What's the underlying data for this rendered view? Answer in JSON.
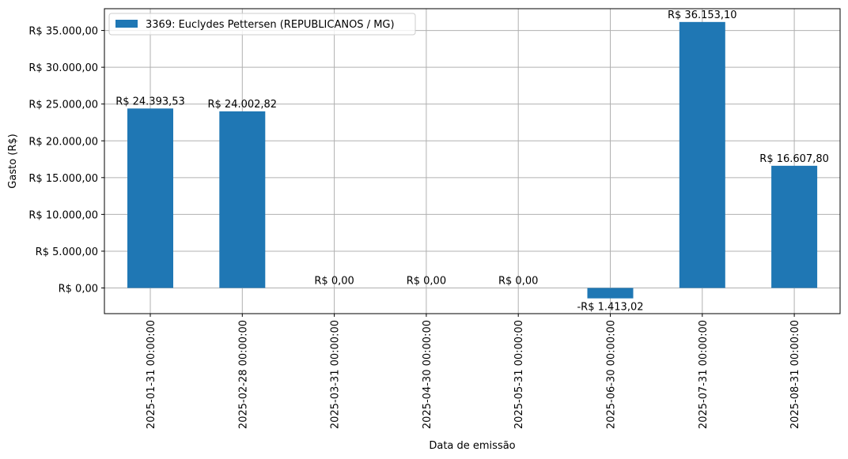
{
  "chart_data": {
    "type": "bar",
    "categories": [
      "2025-01-31 00:00:00",
      "2025-02-28 00:00:00",
      "2025-03-31 00:00:00",
      "2025-04-30 00:00:00",
      "2025-05-31 00:00:00",
      "2025-06-30 00:00:00",
      "2025-07-31 00:00:00",
      "2025-08-31 00:00:00"
    ],
    "series": [
      {
        "name": "3369: Euclydes Pettersen (REPUBLICANOS / MG)",
        "values": [
          24393.53,
          24002.82,
          0,
          0,
          0,
          -1413.02,
          36153.1,
          16607.8
        ],
        "color": "#1f77b4"
      }
    ],
    "data_labels": [
      "R$ 24.393,53",
      "R$ 24.002,82",
      "R$ 0,00",
      "R$ 0,00",
      "R$ 0,00",
      "-R$ 1.413,02",
      "R$ 36.153,10",
      "R$ 16.607,80"
    ],
    "yticks": [
      {
        "value": 0,
        "label": "R$ 0,00"
      },
      {
        "value": 5000,
        "label": "R$ 5.000,00"
      },
      {
        "value": 10000,
        "label": "R$ 10.000,00"
      },
      {
        "value": 15000,
        "label": "R$ 15.000,00"
      },
      {
        "value": 20000,
        "label": "R$ 20.000,00"
      },
      {
        "value": 25000,
        "label": "R$ 25.000,00"
      },
      {
        "value": 30000,
        "label": "R$ 30.000,00"
      },
      {
        "value": 35000,
        "label": "R$ 35.000,00"
      }
    ],
    "xlabel": "Data de emissão",
    "ylabel": "Gasto (R$)",
    "ylim": [
      -3490,
      37960
    ],
    "grid": true,
    "legend": "top-left"
  }
}
